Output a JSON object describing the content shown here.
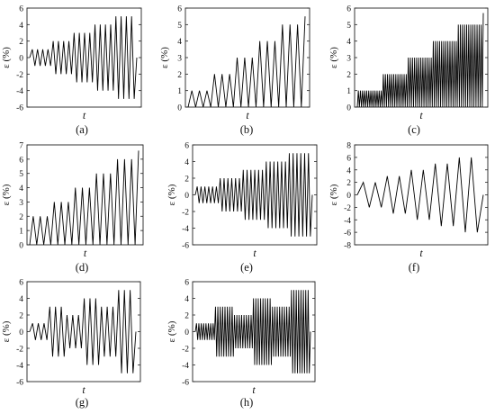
{
  "figure": {
    "background": "#ffffff",
    "line_color": "#000000"
  },
  "chart_data": [
    {
      "id": "a",
      "type": "line",
      "caption": "(a)",
      "xlabel": "t",
      "ylabel": "ε (%)",
      "ylim": [
        -6,
        6
      ],
      "yticks": [
        -6,
        -4,
        -2,
        0,
        2,
        4,
        6
      ],
      "series": [
        {
          "pattern": "symmetric",
          "levels": [
            1,
            1,
            2,
            2,
            3,
            3,
            4,
            4,
            5,
            5
          ],
          "cycles_per_level": 2,
          "end_value": 0
        }
      ]
    },
    {
      "id": "b",
      "type": "line",
      "caption": "(b)",
      "xlabel": "t",
      "ylabel": "ε (%)",
      "ylim": [
        0,
        6
      ],
      "yticks": [
        0,
        1,
        2,
        3,
        4,
        5,
        6
      ],
      "series": [
        {
          "pattern": "zero-to-peak",
          "levels": [
            1,
            2,
            3,
            4,
            5
          ],
          "cycles_per_level": 3,
          "end_value": 5.5
        }
      ]
    },
    {
      "id": "c",
      "type": "line",
      "caption": "(c)",
      "xlabel": "t",
      "ylabel": "ε (%)",
      "ylim": [
        0,
        6
      ],
      "yticks": [
        0,
        1,
        2,
        3,
        4,
        5,
        6
      ],
      "series": [
        {
          "pattern": "zero-to-peak-dense",
          "levels": [
            1,
            2,
            3,
            4,
            5
          ],
          "cycles_per_level": 12,
          "end_value": 5.7
        }
      ]
    },
    {
      "id": "d",
      "type": "line",
      "caption": "(d)",
      "xlabel": "t",
      "ylabel": "ε (%)",
      "ylim": [
        0,
        7
      ],
      "yticks": [
        0,
        1,
        2,
        3,
        4,
        5,
        6,
        7
      ],
      "series": [
        {
          "pattern": "zero-to-peak",
          "levels": [
            2,
            3,
            4,
            5,
            6
          ],
          "cycles_per_level": 3,
          "end_value": 6.6
        }
      ]
    },
    {
      "id": "e",
      "type": "line",
      "caption": "(e)",
      "xlabel": "t",
      "ylabel": "ε (%)",
      "ylim": [
        -6,
        6
      ],
      "yticks": [
        -6,
        -4,
        -2,
        0,
        2,
        4,
        6
      ],
      "series": [
        {
          "pattern": "symmetric",
          "levels": [
            1,
            2,
            3,
            4,
            5
          ],
          "cycles_per_level": 6,
          "end_value": 0
        }
      ]
    },
    {
      "id": "f",
      "type": "line",
      "caption": "(f)",
      "xlabel": "t",
      "ylabel": "ε (%)",
      "ylim": [
        -8,
        8
      ],
      "yticks": [
        -8,
        -6,
        -4,
        -2,
        0,
        2,
        4,
        6,
        8
      ],
      "series": [
        {
          "pattern": "symmetric",
          "levels": [
            2,
            2,
            3,
            3,
            4,
            4,
            5,
            5,
            6,
            6
          ],
          "cycles_per_level": 1,
          "end_value": 0
        }
      ]
    },
    {
      "id": "g",
      "type": "line",
      "caption": "(g)",
      "xlabel": "t",
      "ylabel": "ε (%)",
      "ylim": [
        -6,
        6
      ],
      "yticks": [
        -6,
        -4,
        -2,
        0,
        2,
        4,
        6
      ],
      "series": [
        {
          "pattern": "symmetric-block",
          "levels": [
            1,
            3,
            2,
            4,
            3,
            5
          ],
          "cycles_per_level": 3,
          "end_value": 0
        }
      ]
    },
    {
      "id": "h",
      "type": "line",
      "caption": "(h)",
      "xlabel": "t",
      "ylabel": "ε (%)",
      "ylim": [
        -6,
        6
      ],
      "yticks": [
        -6,
        -4,
        -2,
        0,
        2,
        4,
        6
      ],
      "series": [
        {
          "pattern": "symmetric-block-dense",
          "levels": [
            1,
            3,
            2,
            4,
            3,
            5
          ],
          "cycles_per_level": 8,
          "end_value": 0
        }
      ]
    }
  ]
}
